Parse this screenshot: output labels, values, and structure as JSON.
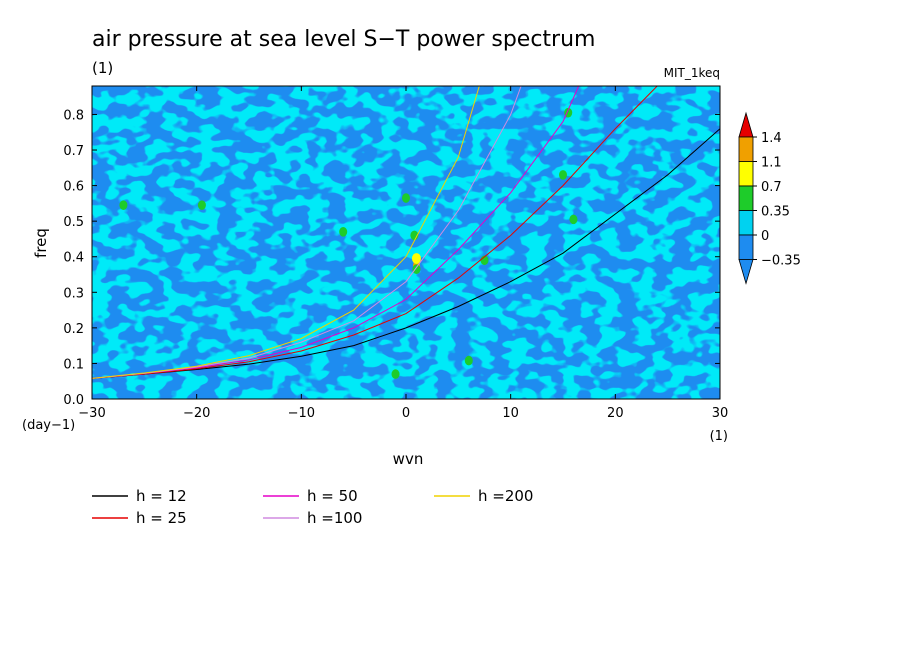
{
  "chart_data": {
    "type": "heatmap",
    "title": "air pressure at sea level S−T power spectrum",
    "subtitle": "(1)",
    "model_tag": "MIT_1keq",
    "xlabel": "wvn",
    "ylabel": "freq",
    "x_unit": "(1)",
    "y_unit": "(day−1)",
    "xlim": [
      -30,
      30
    ],
    "ylim": [
      0,
      0.88
    ],
    "x_ticks": [
      -30,
      -20,
      -10,
      0,
      10,
      20,
      30
    ],
    "x_tick_labels": [
      "−30",
      "−20",
      "−10",
      "0",
      "10",
      "20",
      "30"
    ],
    "y_ticks": [
      0.0,
      0.1,
      0.2,
      0.3,
      0.4,
      0.5,
      0.6,
      0.7,
      0.8
    ],
    "y_tick_labels": [
      "0.0",
      "0.1",
      "0.2",
      "0.3",
      "0.4",
      "0.5",
      "0.6",
      "0.7",
      "0.8"
    ],
    "colorbar": {
      "levels": [
        -0.35,
        0,
        0.35,
        0.7,
        1.1,
        1.4
      ],
      "labels": [
        "−0.35",
        "0",
        "0.35",
        "0.7",
        "1.1",
        "1.4"
      ],
      "colors": [
        "#1e8cf0",
        "#00d2f0",
        "#1ecc2a",
        "#ffff00",
        "#f0a000",
        "#e60000",
        "#1e8cf0",
        "#e60000"
      ]
    },
    "field_colors": {
      "background": "#1e8cf0",
      "positive": "#00d2f0",
      "green": "#1ecc2a",
      "yellow": "#ffff00",
      "orange": "#f0a000"
    },
    "field_peaks": [
      {
        "x": 1.0,
        "y": 0.375,
        "level": "orange"
      },
      {
        "x": 1.0,
        "y": 0.395,
        "level": "yellow"
      },
      {
        "x": 1.0,
        "y": 0.365,
        "level": "green"
      },
      {
        "x": 0.8,
        "y": 0.46,
        "level": "green"
      },
      {
        "x": 0.0,
        "y": 0.565,
        "level": "green"
      },
      {
        "x": 6.0,
        "y": 0.108,
        "level": "green"
      },
      {
        "x": 15.5,
        "y": 0.805,
        "level": "green"
      },
      {
        "x": -19.5,
        "y": 0.545,
        "level": "green"
      },
      {
        "x": -6.0,
        "y": 0.47,
        "level": "green"
      },
      {
        "x": 15.0,
        "y": 0.63,
        "level": "green"
      },
      {
        "x": 16.0,
        "y": 0.505,
        "level": "green"
      },
      {
        "x": -27.0,
        "y": 0.545,
        "level": "green"
      },
      {
        "x": 7.5,
        "y": 0.39,
        "level": "green"
      },
      {
        "x": -1.0,
        "y": 0.07,
        "level": "green"
      }
    ],
    "series": [
      {
        "name": "h = 12",
        "color": "#000000",
        "x": [
          -30,
          -25,
          -20,
          -15,
          -10,
          -5,
          0,
          5,
          10,
          15,
          20,
          25,
          30
        ],
        "values": [
          0.058,
          0.07,
          0.083,
          0.098,
          0.12,
          0.15,
          0.2,
          0.26,
          0.33,
          0.41,
          0.52,
          0.63,
          0.76
        ]
      },
      {
        "name": "h = 25",
        "color": "#e60000",
        "x": [
          -30,
          -25,
          -20,
          -15,
          -10,
          -5,
          0,
          5,
          10,
          15,
          20,
          24
        ],
        "values": [
          0.058,
          0.07,
          0.085,
          0.105,
          0.135,
          0.18,
          0.24,
          0.34,
          0.46,
          0.6,
          0.76,
          0.88
        ]
      },
      {
        "name": "h = 50",
        "color": "#e600c8",
        "x": [
          -30,
          -25,
          -20,
          -15,
          -10,
          -5,
          0,
          5,
          10,
          15,
          16.5
        ],
        "values": [
          0.058,
          0.072,
          0.088,
          0.11,
          0.145,
          0.2,
          0.28,
          0.42,
          0.58,
          0.78,
          0.88
        ]
      },
      {
        "name": "h =100",
        "color": "#d08ce0",
        "x": [
          -30,
          -25,
          -20,
          -15,
          -10,
          -5,
          0,
          5,
          10,
          11
        ],
        "values": [
          0.058,
          0.072,
          0.09,
          0.115,
          0.16,
          0.22,
          0.33,
          0.53,
          0.8,
          0.88
        ]
      },
      {
        "name": "h =200",
        "color": "#f0d200",
        "x": [
          -30,
          -25,
          -20,
          -15,
          -10,
          -5,
          0,
          5,
          7
        ],
        "values": [
          0.058,
          0.073,
          0.092,
          0.122,
          0.17,
          0.25,
          0.4,
          0.68,
          0.88
        ]
      }
    ]
  }
}
